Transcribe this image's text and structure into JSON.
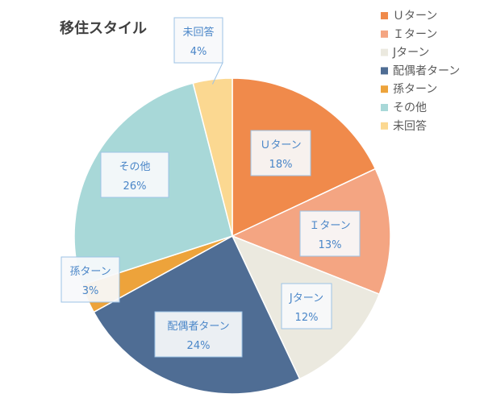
{
  "chart_data": {
    "type": "pie",
    "title": "移住スタイル",
    "categories": [
      "Ｕターン",
      "Ｉターン",
      "Jターン",
      "配偶者ターン",
      "孫ターン",
      "その他",
      "未回答"
    ],
    "values": [
      18,
      13,
      12,
      24,
      3,
      26,
      4
    ],
    "value_labels": [
      "18%",
      "13%",
      "12%",
      "24%",
      "3%",
      "26%",
      "4%"
    ],
    "colors": [
      "#f08a4b",
      "#f4a582",
      "#ebe9df",
      "#4f6d94",
      "#eda33b",
      "#a8d8d8",
      "#fbd891"
    ],
    "legend_position": "right"
  }
}
